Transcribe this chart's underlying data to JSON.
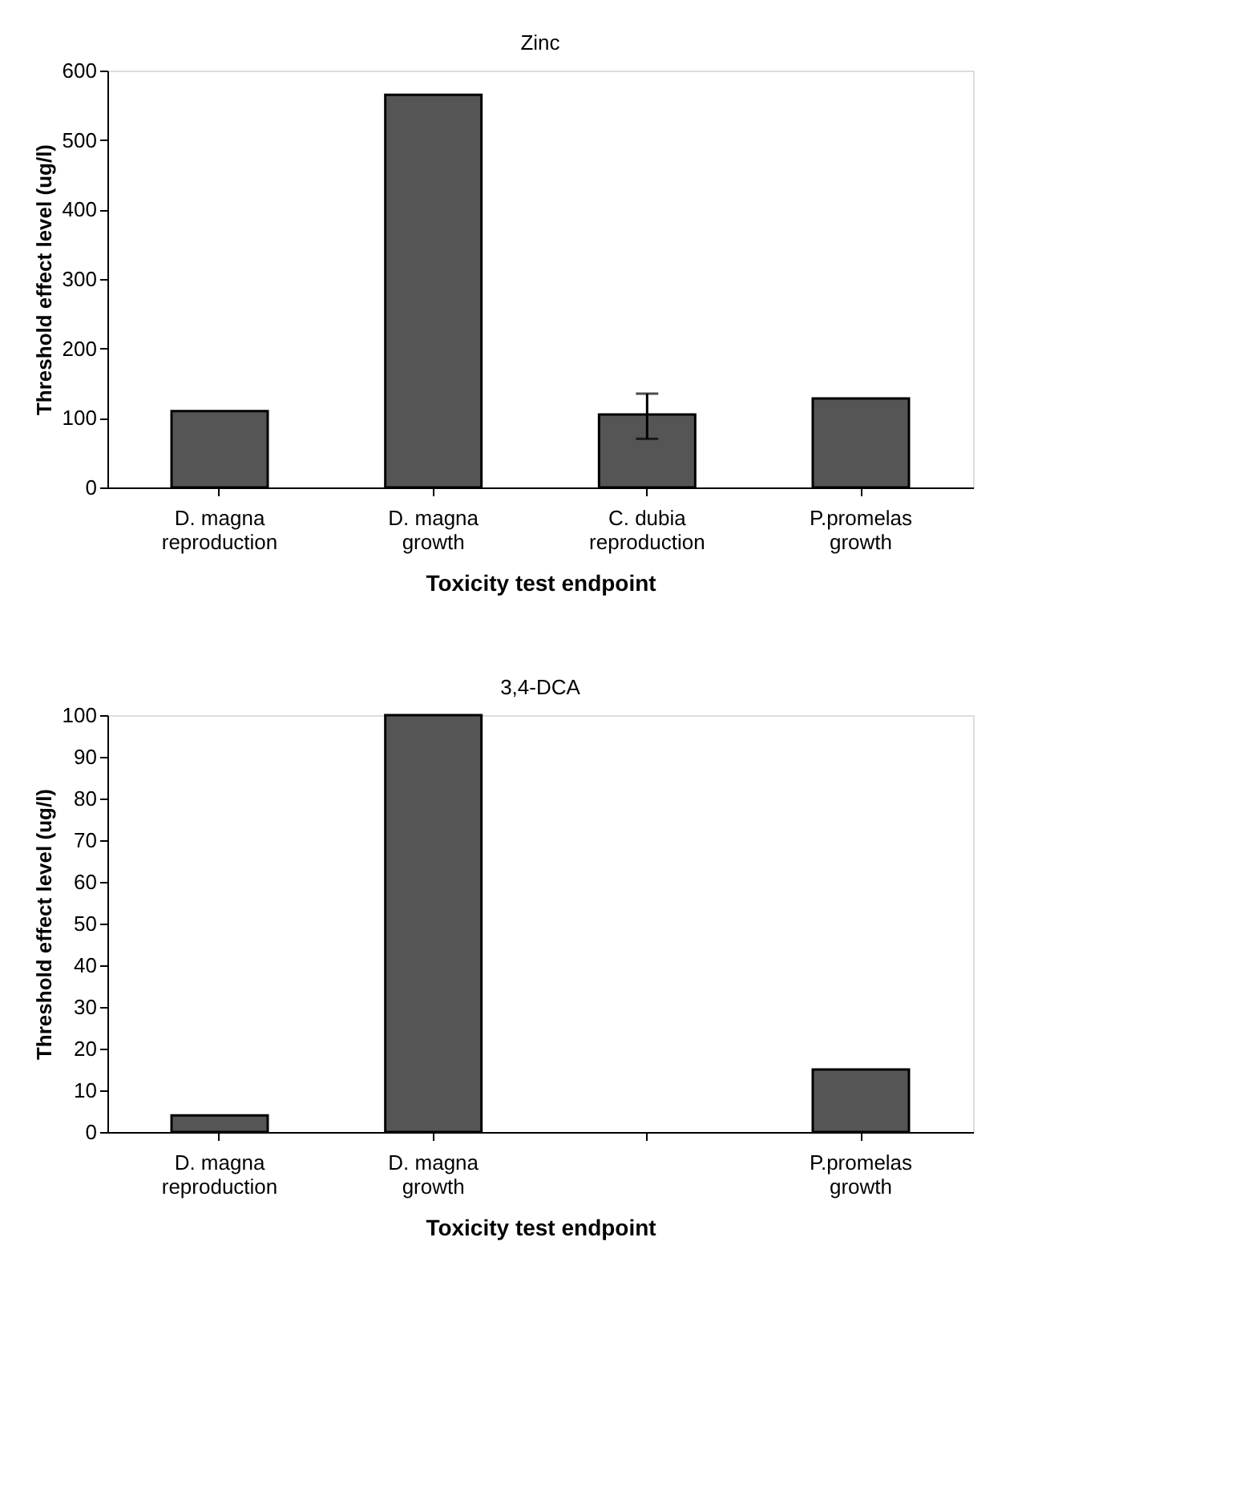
{
  "chart_data": [
    {
      "type": "bar",
      "title": "Zinc",
      "xlabel": "Toxicity test endpoint",
      "ylabel": "Threshold effect level (ug/l)",
      "categories": [
        "D. magna\nreproduction",
        "D. magna\ngrowth",
        "C. dubia\nreproduction",
        "P.promelas\ngrowth"
      ],
      "values": [
        110,
        565,
        105,
        128
      ],
      "color": "#555555",
      "errors": [
        null,
        null,
        [
          70,
          135
        ],
        null
      ],
      "ylim": [
        0,
        600
      ],
      "yticks": [
        0,
        100,
        200,
        300,
        400,
        500,
        600
      ],
      "grid": false,
      "legend": false
    },
    {
      "type": "bar",
      "title": "3,4-DCA",
      "xlabel": "Toxicity test endpoint",
      "ylabel": "Threshold effect level (ug/l)",
      "categories": [
        "D. magna\nreproduction",
        "D. magna\ngrowth",
        null,
        "P.promelas\ngrowth"
      ],
      "values": [
        4,
        100,
        null,
        15
      ],
      "color": "#555555",
      "ylim": [
        0,
        100
      ],
      "yticks": [
        0,
        10,
        20,
        30,
        40,
        50,
        60,
        70,
        80,
        90,
        100
      ],
      "grid": false,
      "legend": false
    }
  ]
}
